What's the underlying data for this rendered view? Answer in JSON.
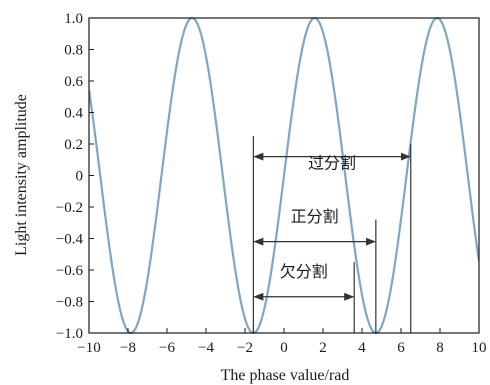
{
  "chart_data": {
    "type": "line",
    "title": "",
    "xlabel": "The phase value/rad",
    "ylabel": "Light intensity amplitude",
    "xlim": [
      -10,
      10
    ],
    "ylim": [
      -1.0,
      1.0
    ],
    "x_ticks": [
      -10,
      -8,
      -6,
      -4,
      -2,
      0,
      2,
      4,
      6,
      8,
      10
    ],
    "x_tick_labels": [
      "−10",
      "−8",
      "−6",
      "−4",
      "−2",
      "0",
      "2",
      "4",
      "6",
      "8",
      "10"
    ],
    "y_ticks": [
      1.0,
      0.8,
      0.6,
      0.4,
      0.2,
      0,
      -0.2,
      -0.4,
      -0.6,
      -0.8,
      -1.0
    ],
    "y_tick_labels": [
      "1.0",
      "0.8",
      "0.6",
      "0.4",
      "0.2",
      "0",
      "−0.2",
      "−0.4",
      "−0.6",
      "−0.8",
      "−1.0"
    ],
    "grid": false,
    "series": [
      {
        "function": "sin(x)",
        "x_range": [
          -10,
          10
        ],
        "color": "#7ea6c6"
      }
    ],
    "annotations": [
      {
        "label": "过分割",
        "x_start": -1.57,
        "x_end": 6.5,
        "y_arrow": 0.12,
        "y_label": 0.02,
        "left_line_top": 0.25,
        "right_line_top": 0.2
      },
      {
        "label": "正分割",
        "x_start": -1.57,
        "x_end": 4.71,
        "y_arrow": -0.42,
        "y_label": -0.32,
        "left_line_top": 0.25,
        "right_line_top": -0.28
      },
      {
        "label": "欠分割",
        "x_start": -1.57,
        "x_end": 3.6,
        "y_arrow": -0.77,
        "y_label": -0.67,
        "left_line_top": 0.25,
        "right_line_top": -0.55
      }
    ],
    "colors": {
      "curve": "#7ea6c6",
      "axis": "#1a1a1a",
      "annotation": "#333333"
    }
  }
}
